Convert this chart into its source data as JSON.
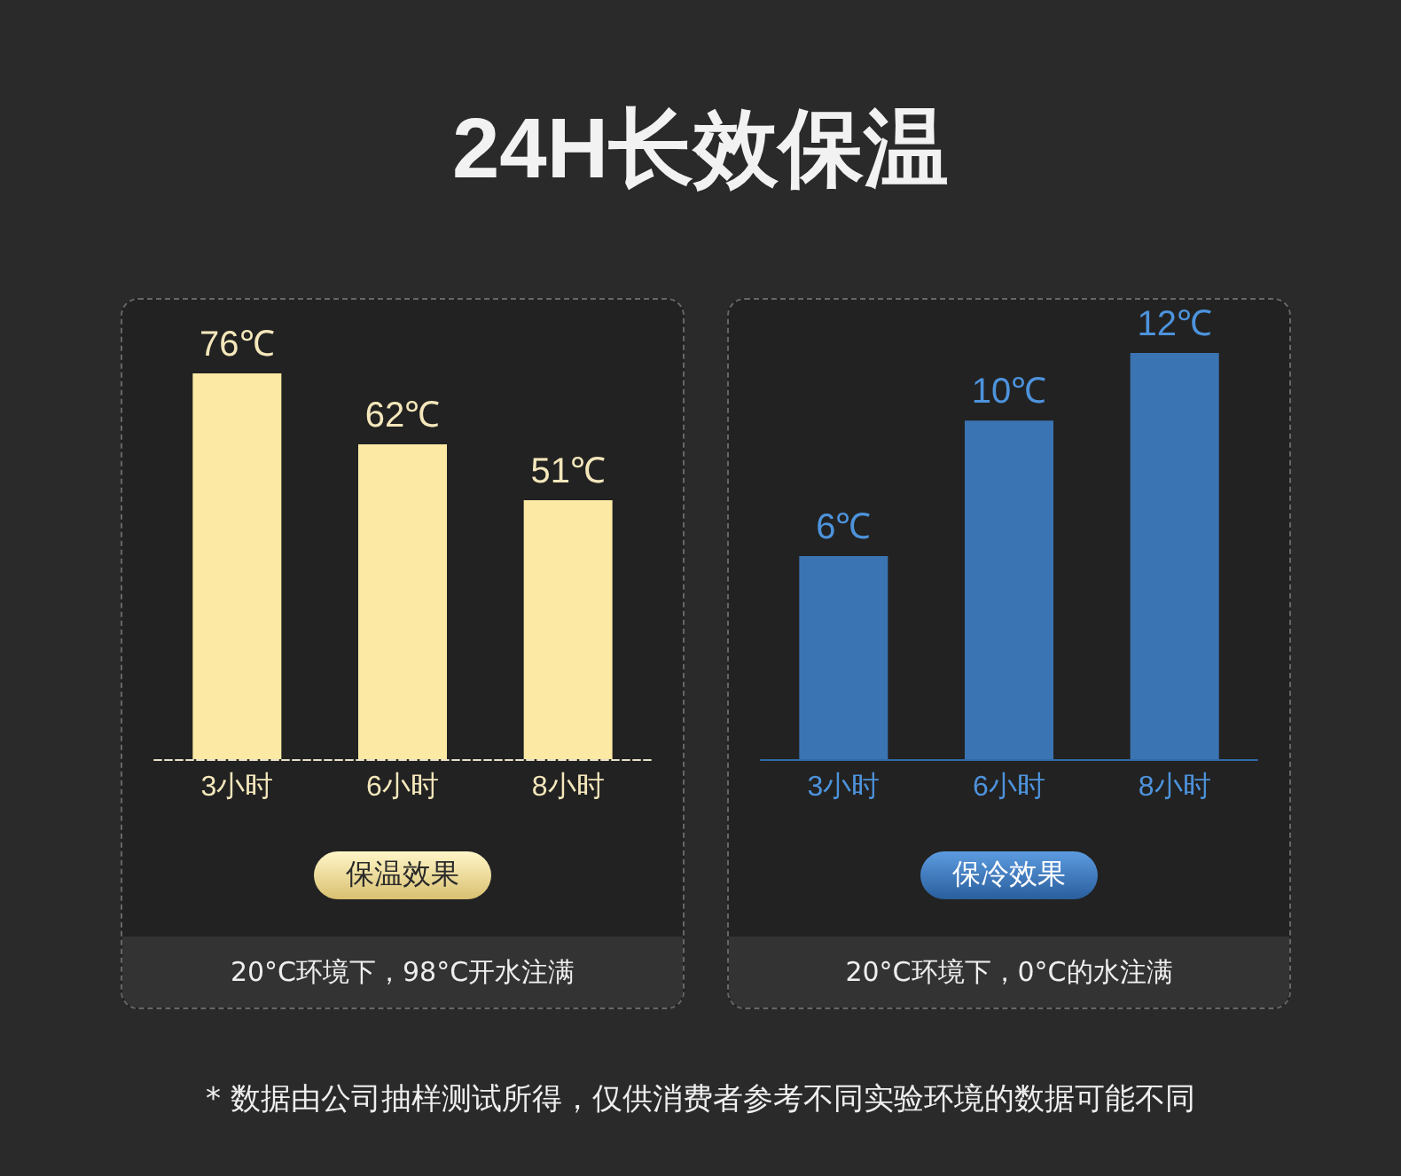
{
  "chart_data": [
    {
      "type": "bar",
      "title": "24H长效保温",
      "categories": [
        "3小时",
        "6小时",
        "8小时"
      ],
      "values": [
        76,
        62,
        51
      ],
      "color": "#fbe9a4",
      "value_labels": [
        "76℃",
        "62℃",
        "51℃"
      ],
      "annotations": [
        "保温效果",
        "20°C环境下，98°C开水注满"
      ]
    },
    {
      "type": "bar",
      "categories": [
        "3小时",
        "6小时",
        "8小时"
      ],
      "values": [
        6,
        10,
        12
      ],
      "color": "#3b74b2",
      "value_labels": [
        "6℃",
        "10℃",
        "12℃"
      ],
      "annotations": [
        "保冷效果",
        "20°C环境下，0°C的水注满",
        "* 数据由公司抽样测试所得，仅供消费者参考不同实验环境的数据可能不同"
      ]
    }
  ]
}
